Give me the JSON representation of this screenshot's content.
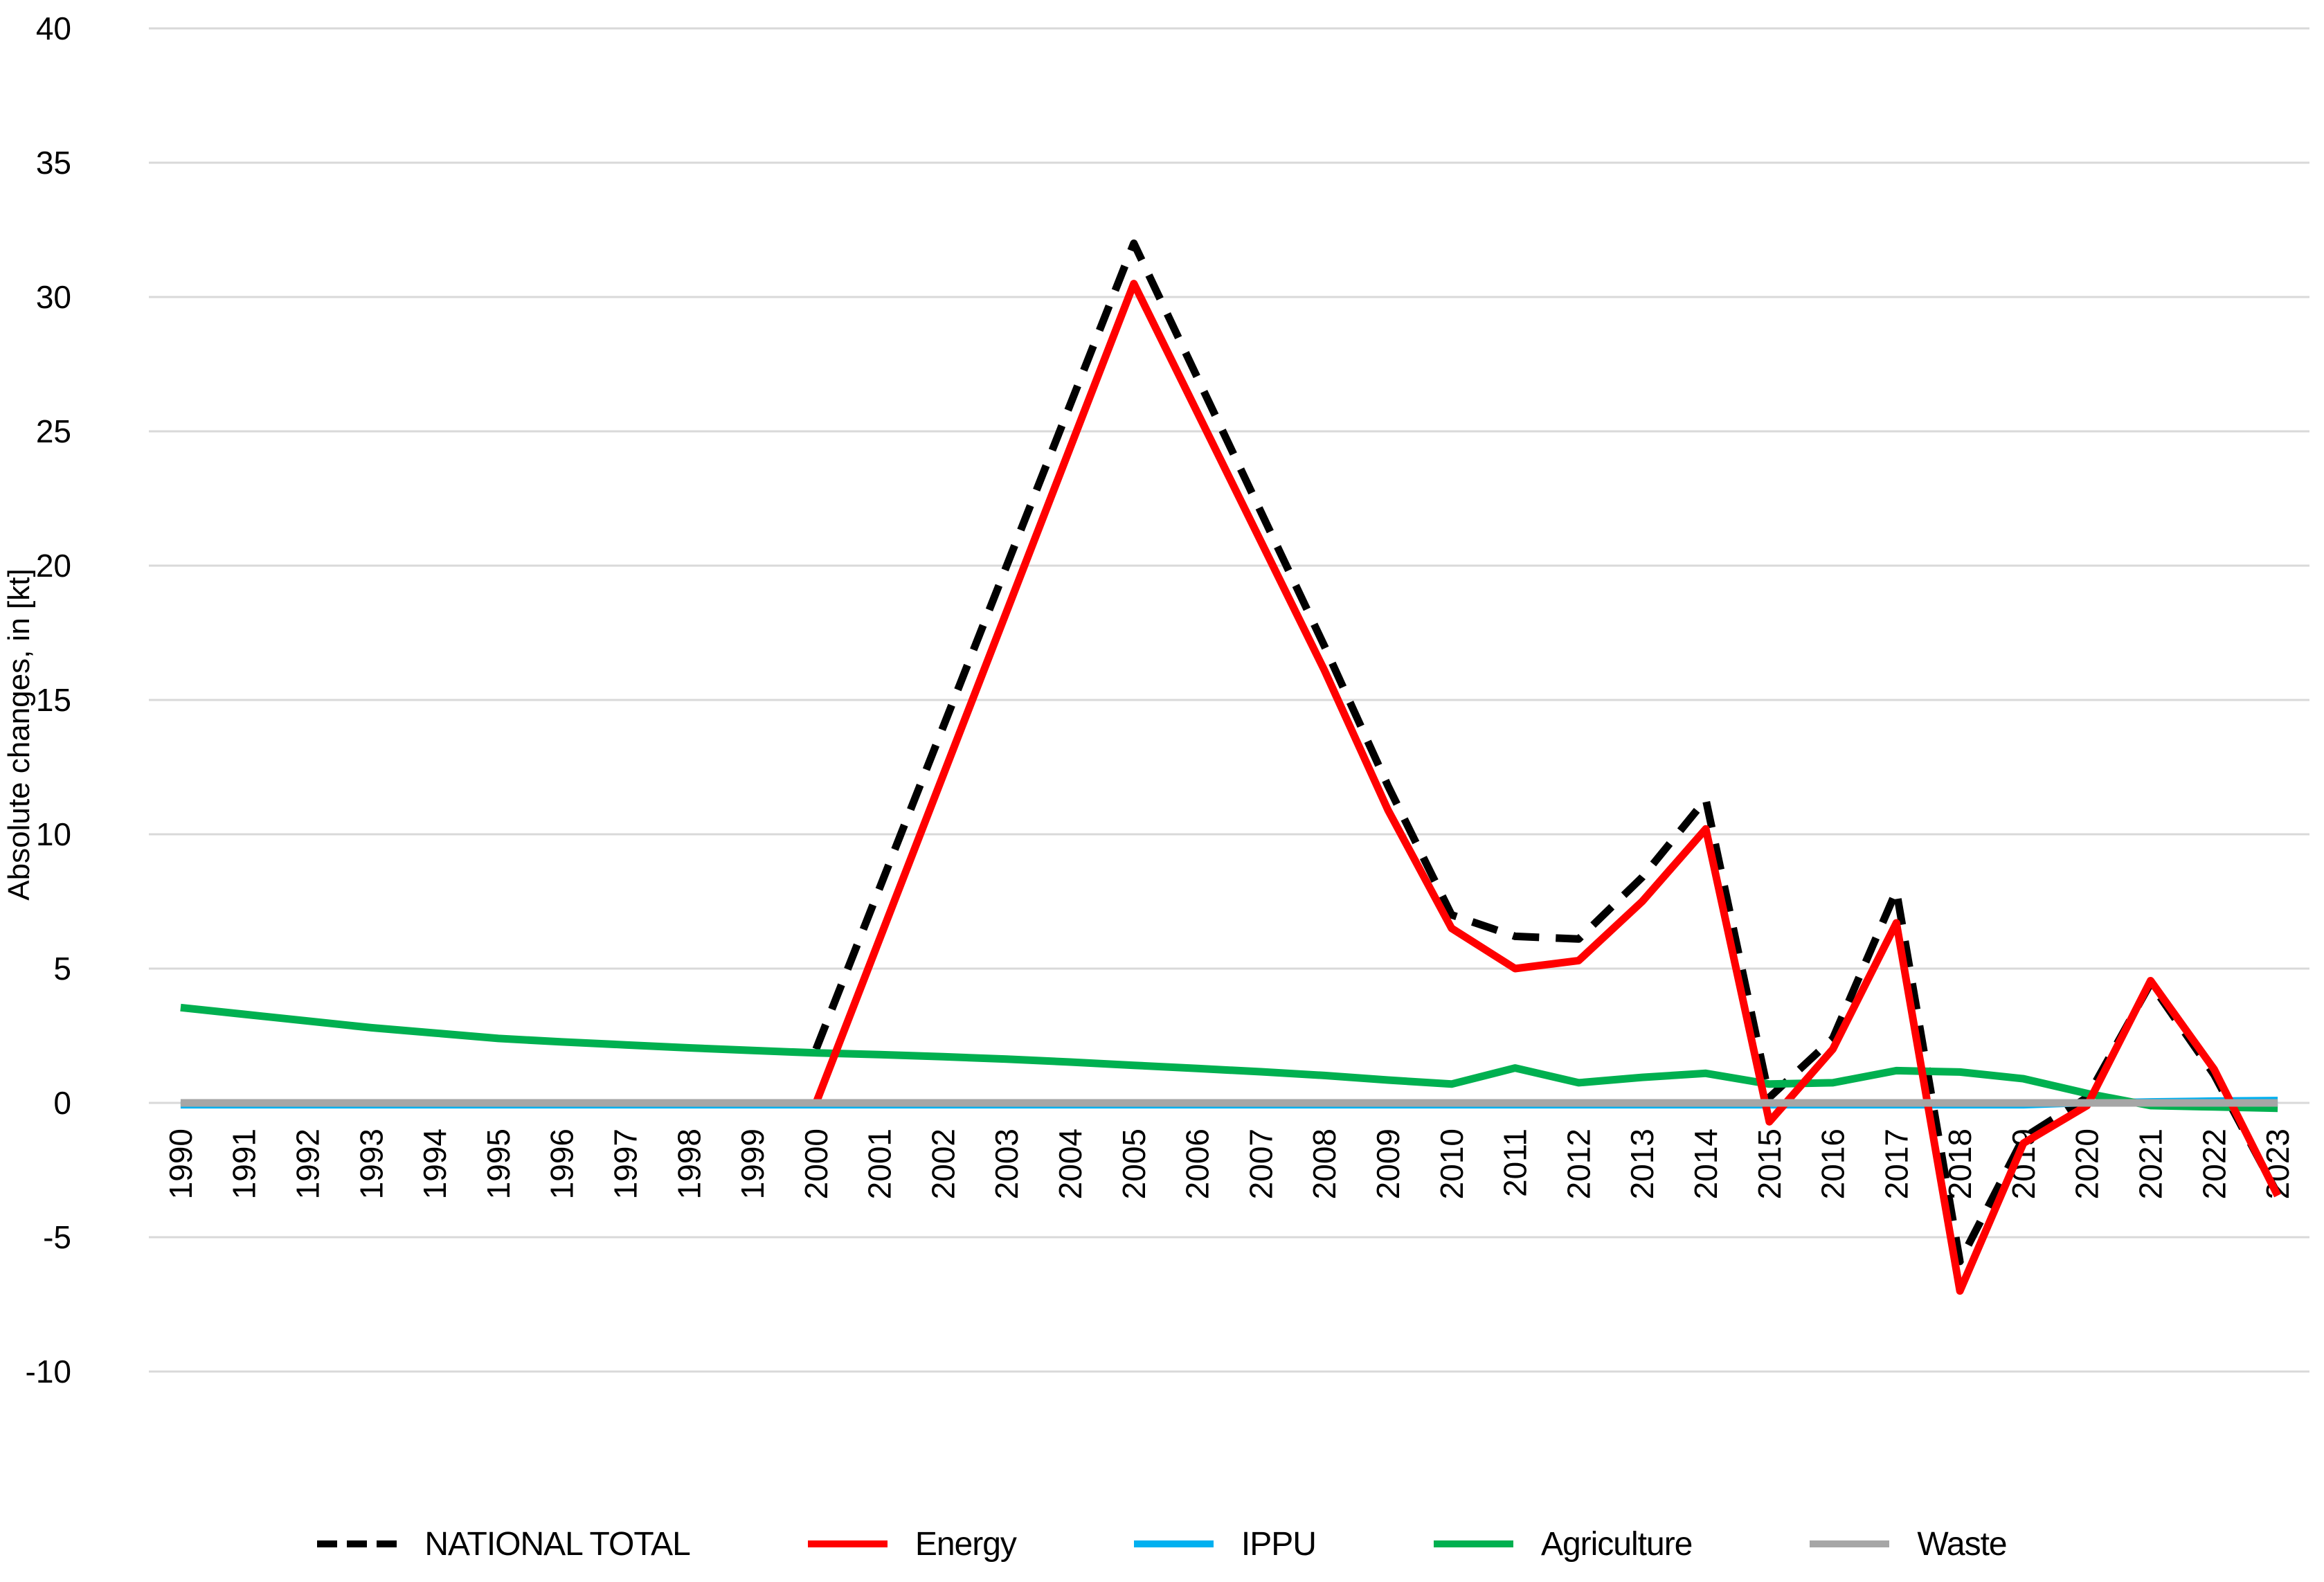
{
  "chart_data": {
    "type": "line",
    "title": "",
    "xlabel": "",
    "ylabel": "Absolute changes, in [kt]",
    "ylim": [
      -10,
      40
    ],
    "ytick_step": 5,
    "grid": "horizontal",
    "legend_position": "bottom",
    "x": [
      1990,
      1991,
      1992,
      1993,
      1994,
      1995,
      1996,
      1997,
      1998,
      1999,
      2000,
      2001,
      2002,
      2003,
      2004,
      2005,
      2006,
      2007,
      2008,
      2009,
      2010,
      2011,
      2012,
      2013,
      2014,
      2015,
      2016,
      2017,
      2018,
      2019,
      2020,
      2021,
      2022,
      2023
    ],
    "series": [
      {
        "name": "NATIONAL TOTAL",
        "color": "#000000",
        "dash": true,
        "values": [
          null,
          null,
          null,
          null,
          null,
          null,
          null,
          null,
          null,
          null,
          2.0,
          8.0,
          14.0,
          20.0,
          26.0,
          32.0,
          27.0,
          22.0,
          17.0,
          11.8,
          7.0,
          6.2,
          6.1,
          8.4,
          11.3,
          0.2,
          2.4,
          7.9,
          -5.9,
          -1.3,
          0.2,
          4.45,
          1.05,
          -3.4
        ]
      },
      {
        "name": "Energy",
        "color": "#FF0000",
        "dash": false,
        "values": [
          null,
          null,
          null,
          null,
          null,
          null,
          null,
          null,
          null,
          null,
          0.0,
          6.1,
          12.2,
          18.3,
          24.4,
          30.5,
          25.7,
          20.9,
          16.1,
          10.9,
          6.5,
          5.0,
          5.3,
          7.5,
          10.2,
          -0.7,
          2.0,
          6.7,
          -7.0,
          -1.5,
          -0.1,
          4.55,
          1.25,
          -3.45
        ]
      },
      {
        "name": "IPPU",
        "color": "#00B0F0",
        "dash": false,
        "values": [
          -0.08,
          -0.08,
          -0.08,
          -0.08,
          -0.08,
          -0.08,
          -0.08,
          -0.08,
          -0.08,
          -0.08,
          -0.08,
          -0.08,
          -0.08,
          -0.08,
          -0.08,
          -0.08,
          -0.08,
          -0.08,
          -0.08,
          -0.08,
          -0.08,
          -0.08,
          -0.08,
          -0.08,
          -0.08,
          -0.08,
          -0.08,
          -0.08,
          -0.08,
          -0.08,
          0.0,
          0.05,
          0.08,
          0.1
        ]
      },
      {
        "name": "Agriculture",
        "color": "#00B050",
        "dash": false,
        "values": [
          3.55,
          3.3,
          3.05,
          2.8,
          2.6,
          2.4,
          2.27,
          2.16,
          2.05,
          1.95,
          1.86,
          1.8,
          1.72,
          1.63,
          1.52,
          1.4,
          1.28,
          1.16,
          1.02,
          0.85,
          0.7,
          1.3,
          0.75,
          0.95,
          1.1,
          0.7,
          0.75,
          1.2,
          1.15,
          0.9,
          0.35,
          -0.1,
          -0.15,
          -0.2
        ]
      },
      {
        "name": "Waste",
        "color": "#A6A6A6",
        "dash": false,
        "values": [
          0,
          0,
          0,
          0,
          0,
          0,
          0,
          0,
          0,
          0,
          0,
          0,
          0,
          0,
          0,
          0,
          0,
          0,
          0,
          0,
          0,
          0,
          0,
          0,
          0,
          0,
          0,
          0,
          0,
          0,
          0,
          0,
          0,
          0
        ]
      }
    ]
  }
}
